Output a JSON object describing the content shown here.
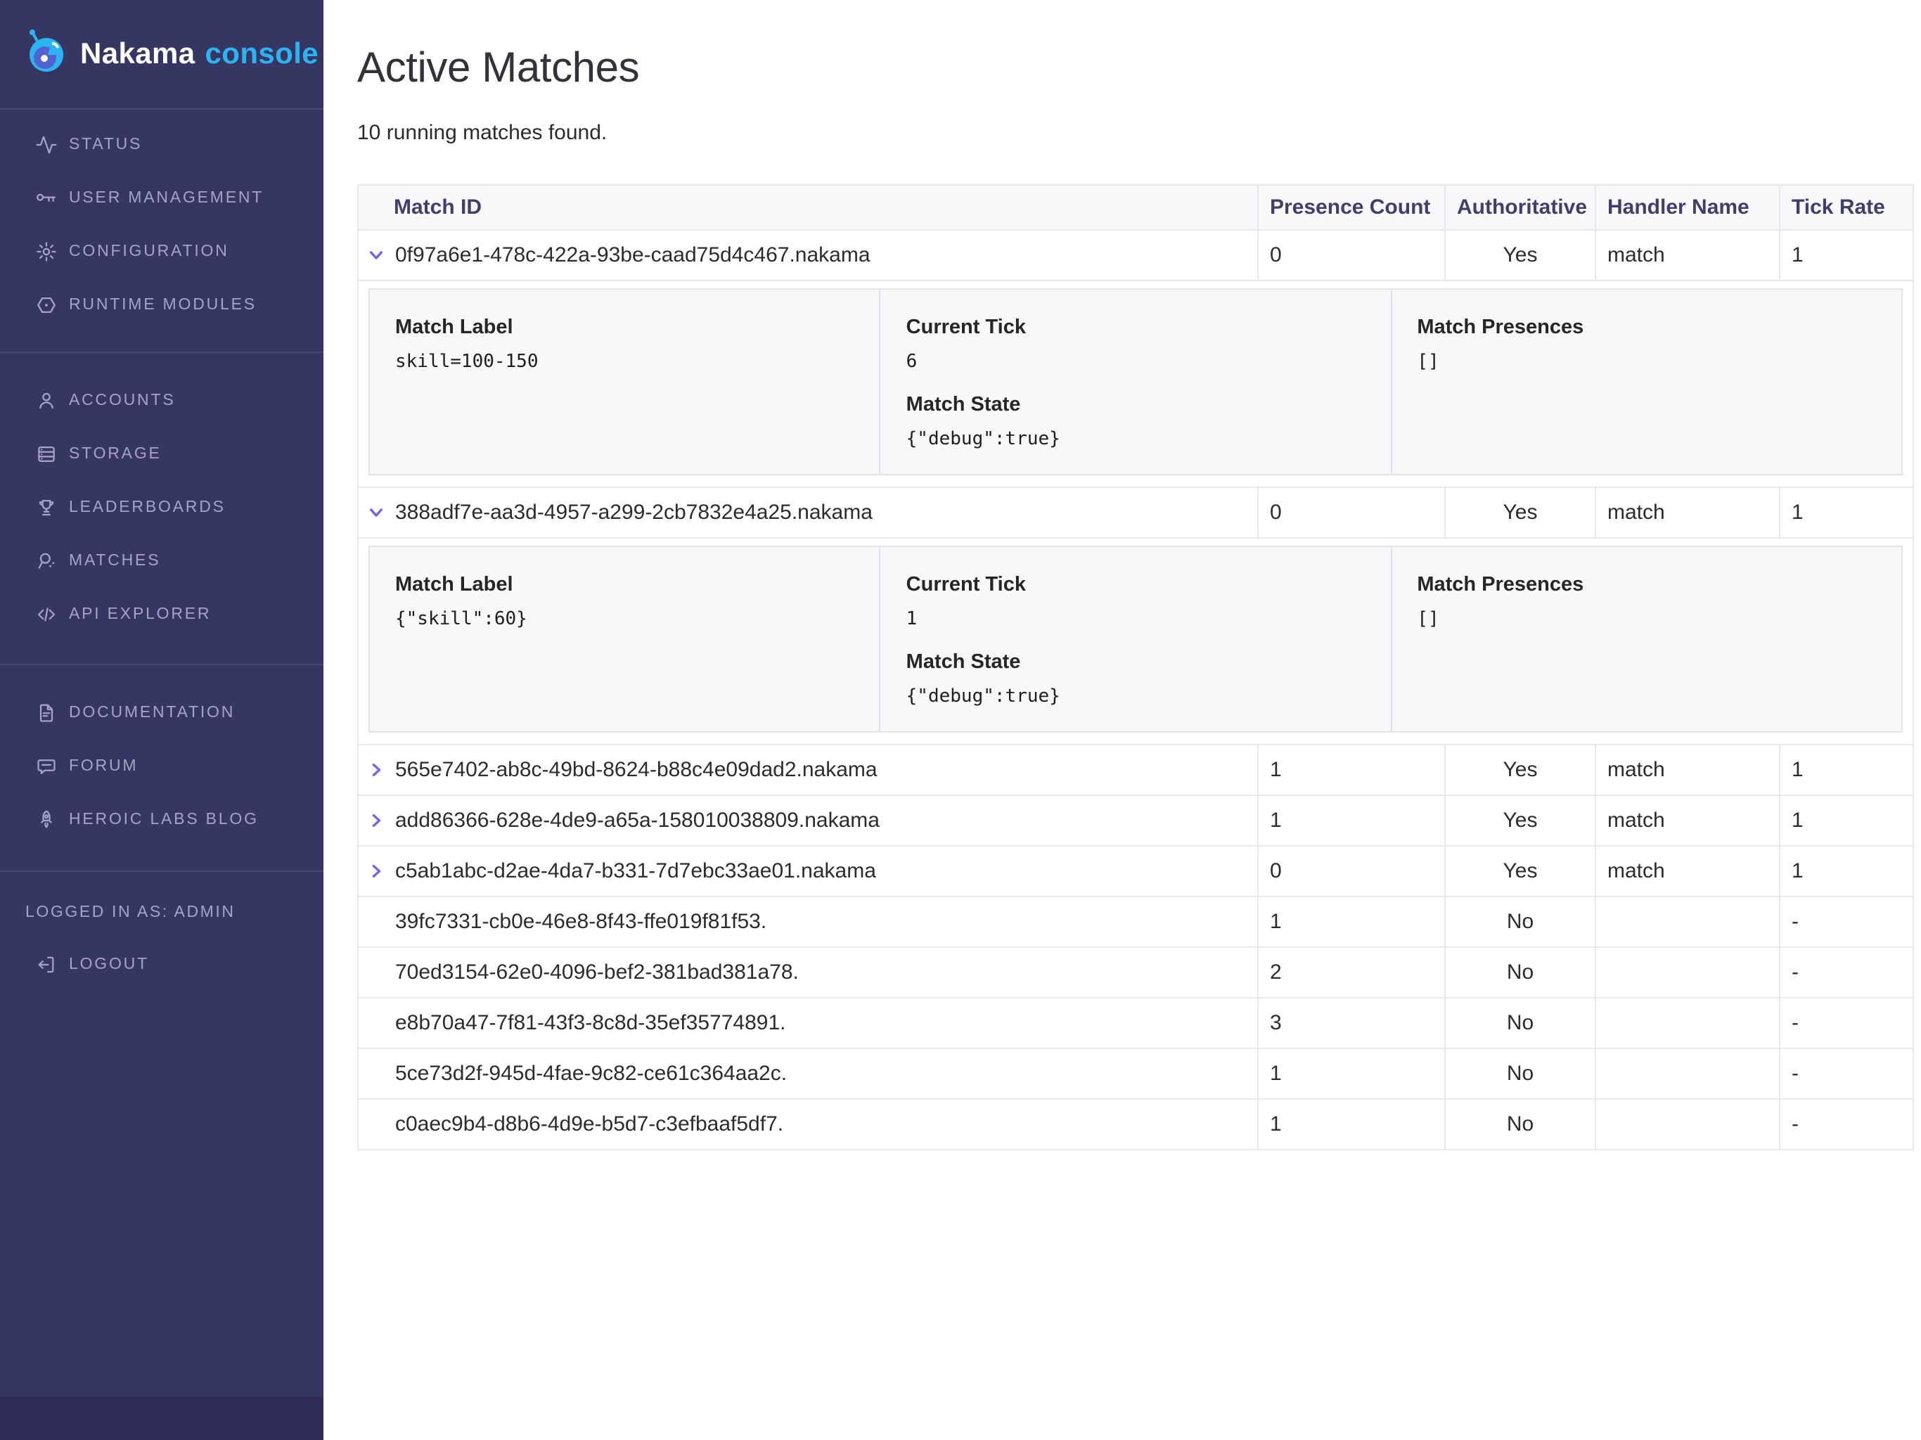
{
  "brand": {
    "name": "Nakama",
    "suffix": "console",
    "suffix_color": "#2eb3f2",
    "sidebar_bg": "#363663",
    "accent_purple": "#7765e3"
  },
  "sidebar": {
    "groups": [
      {
        "items": [
          {
            "label": "STATUS",
            "icon": "activity"
          },
          {
            "label": "USER MANAGEMENT",
            "icon": "key"
          },
          {
            "label": "CONFIGURATION",
            "icon": "gear"
          },
          {
            "label": "RUNTIME MODULES",
            "icon": "hexagon-dot"
          }
        ]
      },
      {
        "items": [
          {
            "label": "ACCOUNTS",
            "icon": "person"
          },
          {
            "label": "STORAGE",
            "icon": "storage-stack"
          },
          {
            "label": "LEADERBOARDS",
            "icon": "trophy"
          },
          {
            "label": "MATCHES",
            "icon": "match-paddle"
          },
          {
            "label": "API EXPLORER",
            "icon": "code"
          }
        ]
      },
      {
        "items": [
          {
            "label": "DOCUMENTATION",
            "icon": "document"
          },
          {
            "label": "FORUM",
            "icon": "chat-bubble"
          },
          {
            "label": "HEROIC LABS BLOG",
            "icon": "rocket"
          }
        ]
      }
    ],
    "session_label": "LOGGED IN AS: ADMIN",
    "logout": {
      "label": "LOGOUT",
      "icon": "logout"
    }
  },
  "page": {
    "title": "Active Matches",
    "subtitle": "10 running matches found."
  },
  "table": {
    "columns": [
      "Match ID",
      "Presence Count",
      "Authoritative",
      "Handler Name",
      "Tick Rate"
    ],
    "detail_labels": {
      "match_label": "Match Label",
      "current_tick": "Current Tick",
      "match_state": "Match State",
      "match_presences": "Match Presences"
    },
    "rows": [
      {
        "match_id": "0f97a6e1-478c-422a-93be-caad75d4c467.nakama",
        "chevron": "down",
        "presence_count": "0",
        "authoritative": "Yes",
        "handler_name": "match",
        "tick_rate": "1",
        "detail": {
          "match_label": "skill=100-150",
          "current_tick": "6",
          "match_state": "{\"debug\":true}",
          "match_presences": "[]"
        }
      },
      {
        "match_id": "388adf7e-aa3d-4957-a299-2cb7832e4a25.nakama",
        "chevron": "down",
        "presence_count": "0",
        "authoritative": "Yes",
        "handler_name": "match",
        "tick_rate": "1",
        "detail": {
          "match_label": "{\"skill\":60}",
          "current_tick": "1",
          "match_state": "{\"debug\":true}",
          "match_presences": "[]"
        }
      },
      {
        "match_id": "565e7402-ab8c-49bd-8624-b88c4e09dad2.nakama",
        "chevron": "right",
        "presence_count": "1",
        "authoritative": "Yes",
        "handler_name": "match",
        "tick_rate": "1"
      },
      {
        "match_id": "add86366-628e-4de9-a65a-158010038809.nakama",
        "chevron": "right",
        "presence_count": "1",
        "authoritative": "Yes",
        "handler_name": "match",
        "tick_rate": "1"
      },
      {
        "match_id": "c5ab1abc-d2ae-4da7-b331-7d7ebc33ae01.nakama",
        "chevron": "right",
        "presence_count": "0",
        "authoritative": "Yes",
        "handler_name": "match",
        "tick_rate": "1"
      },
      {
        "match_id": "39fc7331-cb0e-46e8-8f43-ffe019f81f53.",
        "chevron": "none",
        "presence_count": "1",
        "authoritative": "No",
        "handler_name": "",
        "tick_rate": "-"
      },
      {
        "match_id": "70ed3154-62e0-4096-bef2-381bad381a78.",
        "chevron": "none",
        "presence_count": "2",
        "authoritative": "No",
        "handler_name": "",
        "tick_rate": "-"
      },
      {
        "match_id": "e8b70a47-7f81-43f3-8c8d-35ef35774891.",
        "chevron": "none",
        "presence_count": "3",
        "authoritative": "No",
        "handler_name": "",
        "tick_rate": "-"
      },
      {
        "match_id": "5ce73d2f-945d-4fae-9c82-ce61c364aa2c.",
        "chevron": "none",
        "presence_count": "1",
        "authoritative": "No",
        "handler_name": "",
        "tick_rate": "-"
      },
      {
        "match_id": "c0aec9b4-d8b6-4d9e-b5d7-c3efbaaf5df7.",
        "chevron": "none",
        "presence_count": "1",
        "authoritative": "No",
        "handler_name": "",
        "tick_rate": "-"
      }
    ]
  }
}
